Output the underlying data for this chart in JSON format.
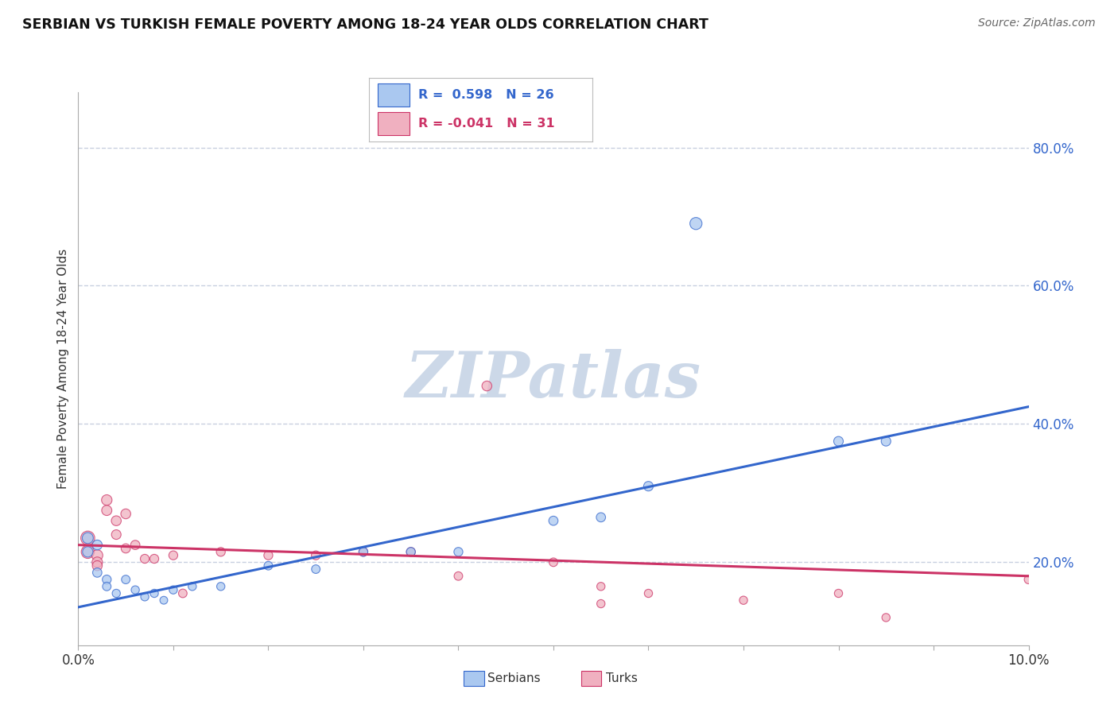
{
  "title": "SERBIAN VS TURKISH FEMALE POVERTY AMONG 18-24 YEAR OLDS CORRELATION CHART",
  "source": "Source: ZipAtlas.com",
  "ylabel": "Female Poverty Among 18-24 Year Olds",
  "yticks": [
    "20.0%",
    "40.0%",
    "60.0%",
    "80.0%"
  ],
  "ytick_values": [
    0.2,
    0.4,
    0.6,
    0.8
  ],
  "legend1_r": "0.598",
  "legend1_n": "26",
  "legend2_r": "-0.041",
  "legend2_n": "31",
  "blue_color": "#aac8f0",
  "pink_color": "#f0b0c0",
  "blue_line_color": "#3366cc",
  "pink_line_color": "#cc3366",
  "watermark_text": "ZIPatlas",
  "xlim": [
    0.0,
    0.1
  ],
  "ylim": [
    0.08,
    0.88
  ],
  "bg_color": "#ffffff",
  "grid_color": "#c8d0e0",
  "watermark_color": "#ccd8e8",
  "serbian_points": [
    [
      0.001,
      0.235
    ],
    [
      0.001,
      0.215
    ],
    [
      0.002,
      0.225
    ],
    [
      0.002,
      0.185
    ],
    [
      0.003,
      0.175
    ],
    [
      0.003,
      0.165
    ],
    [
      0.004,
      0.155
    ],
    [
      0.005,
      0.175
    ],
    [
      0.006,
      0.16
    ],
    [
      0.007,
      0.15
    ],
    [
      0.008,
      0.155
    ],
    [
      0.009,
      0.145
    ],
    [
      0.01,
      0.16
    ],
    [
      0.012,
      0.165
    ],
    [
      0.015,
      0.165
    ],
    [
      0.02,
      0.195
    ],
    [
      0.025,
      0.19
    ],
    [
      0.03,
      0.215
    ],
    [
      0.035,
      0.215
    ],
    [
      0.04,
      0.215
    ],
    [
      0.05,
      0.26
    ],
    [
      0.055,
      0.265
    ],
    [
      0.06,
      0.31
    ],
    [
      0.065,
      0.69
    ],
    [
      0.08,
      0.375
    ],
    [
      0.085,
      0.375
    ]
  ],
  "turkish_points": [
    [
      0.001,
      0.235
    ],
    [
      0.001,
      0.215
    ],
    [
      0.002,
      0.21
    ],
    [
      0.002,
      0.2
    ],
    [
      0.002,
      0.195
    ],
    [
      0.003,
      0.29
    ],
    [
      0.003,
      0.275
    ],
    [
      0.004,
      0.26
    ],
    [
      0.004,
      0.24
    ],
    [
      0.005,
      0.27
    ],
    [
      0.005,
      0.22
    ],
    [
      0.006,
      0.225
    ],
    [
      0.007,
      0.205
    ],
    [
      0.008,
      0.205
    ],
    [
      0.01,
      0.21
    ],
    [
      0.011,
      0.155
    ],
    [
      0.015,
      0.215
    ],
    [
      0.02,
      0.21
    ],
    [
      0.025,
      0.21
    ],
    [
      0.03,
      0.215
    ],
    [
      0.035,
      0.215
    ],
    [
      0.04,
      0.18
    ],
    [
      0.043,
      0.455
    ],
    [
      0.05,
      0.2
    ],
    [
      0.055,
      0.165
    ],
    [
      0.055,
      0.14
    ],
    [
      0.06,
      0.155
    ],
    [
      0.07,
      0.145
    ],
    [
      0.08,
      0.155
    ],
    [
      0.085,
      0.12
    ],
    [
      0.1,
      0.175
    ]
  ],
  "serbian_sizes": [
    100,
    90,
    80,
    70,
    65,
    60,
    55,
    60,
    55,
    55,
    55,
    50,
    55,
    55,
    55,
    60,
    60,
    65,
    65,
    65,
    70,
    70,
    75,
    120,
    75,
    75
  ],
  "turkish_sizes": [
    160,
    140,
    100,
    90,
    80,
    90,
    85,
    80,
    75,
    80,
    70,
    70,
    65,
    65,
    65,
    60,
    65,
    65,
    65,
    65,
    65,
    60,
    80,
    60,
    55,
    55,
    55,
    55,
    55,
    55,
    60
  ],
  "blue_regline": [
    0.0,
    0.135,
    0.1,
    0.425
  ],
  "pink_regline": [
    0.0,
    0.225,
    0.1,
    0.18
  ]
}
